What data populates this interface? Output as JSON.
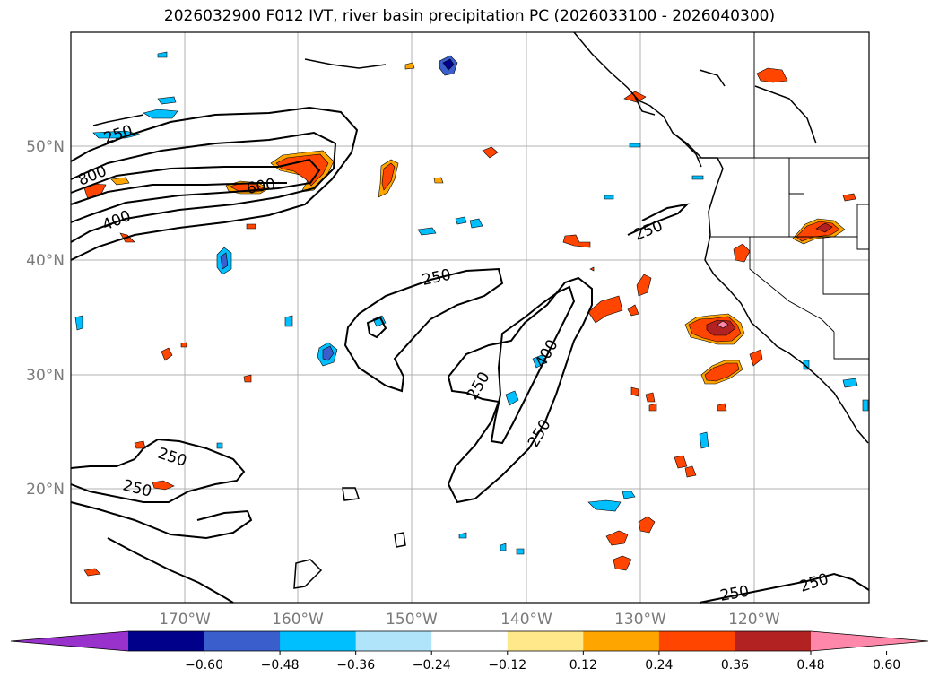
{
  "title": "2026032900 F012 IVT, river basin precipitation PC (2026033100 - 2026040300)",
  "lat_labels": [
    "50°N",
    "40°N",
    "30°N",
    "20°N"
  ],
  "lon_labels": [
    "170°W",
    "160°W",
    "150°W",
    "140°W",
    "130°W",
    "120°W"
  ],
  "contour_labels": [
    "250",
    "800",
    "600",
    "400",
    "250",
    "250",
    "250",
    "400",
    "250",
    "250",
    "250",
    "250",
    "250"
  ],
  "colorbar": {
    "ticks": [
      "−0.60",
      "−0.48",
      "−0.36",
      "−0.24",
      "−0.12",
      "0.12",
      "0.24",
      "0.36",
      "0.48",
      "0.60"
    ],
    "colors": [
      "#9932cc",
      "#00008b",
      "#3a5fcd",
      "#00bfff",
      "#afe4fa",
      "#ffffff",
      "#ffe88a",
      "#ffa500",
      "#ff4500",
      "#b22222",
      "#ff88aa"
    ]
  }
}
